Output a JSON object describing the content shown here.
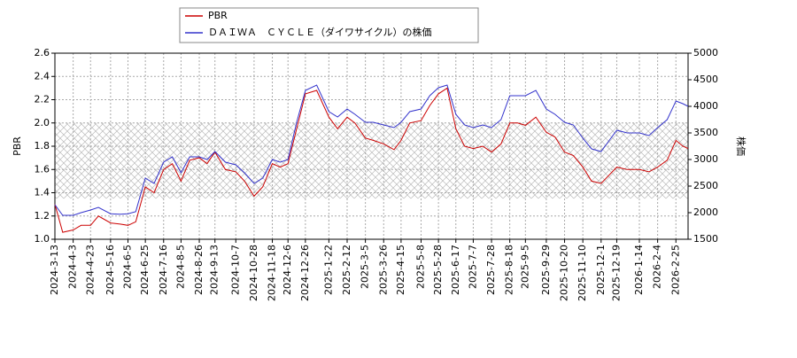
{
  "chart_data": {
    "type": "line",
    "legend": [
      "PBR",
      "ＤＡＩＷＡ　ＣＹＣＬＥ（ダイワサイクル）の株価"
    ],
    "ylabel": "PBR",
    "y2label": "株価",
    "x": [
      "2024-3-13",
      "2024-3-22",
      "2024-4-3",
      "2024-4-12",
      "2024-4-23",
      "2024-5-2",
      "2024-5-16",
      "2024-5-27",
      "2024-6-5",
      "2024-6-14",
      "2024-6-25",
      "2024-7-5",
      "2024-7-16",
      "2024-7-26",
      "2024-8-5",
      "2024-8-15",
      "2024-8-26",
      "2024-9-4",
      "2024-9-13",
      "2024-9-25",
      "2024-10-7",
      "2024-10-17",
      "2024-10-28",
      "2024-11-7",
      "2024-11-18",
      "2024-11-27",
      "2024-12-6",
      "2024-12-16",
      "2024-12-26",
      "2025-1-8",
      "2025-1-22",
      "2025-2-1",
      "2025-2-12",
      "2025-2-21",
      "2025-3-5",
      "2025-3-14",
      "2025-3-26",
      "2025-4-7",
      "2025-4-15",
      "2025-4-25",
      "2025-5-8",
      "2025-5-18",
      "2025-5-28",
      "2025-6-7",
      "2025-6-17",
      "2025-6-27",
      "2025-7-7",
      "2025-7-18",
      "2025-7-28",
      "2025-8-8",
      "2025-8-18",
      "2025-8-27",
      "2025-9-5",
      "2025-9-17",
      "2025-9-29",
      "2025-10-9",
      "2025-10-20",
      "2025-10-30",
      "2025-11-10",
      "2025-11-20",
      "2025-12-1",
      "2025-12-10",
      "2025-12-19",
      "2025-12-31",
      "2026-1-14",
      "2026-1-25",
      "2026-2-4",
      "2026-2-15",
      "2026-2-25",
      "2026-3-5",
      "2026-3-11"
    ],
    "series": [
      {
        "name": "PBR",
        "color": "#cc0000",
        "axis": "y",
        "values": [
          1.3,
          1.06,
          1.08,
          1.12,
          1.12,
          1.2,
          1.14,
          1.13,
          1.12,
          1.15,
          1.45,
          1.4,
          1.6,
          1.65,
          1.5,
          1.68,
          1.7,
          1.65,
          1.75,
          1.6,
          1.58,
          1.5,
          1.37,
          1.45,
          1.65,
          1.62,
          1.65,
          1.95,
          2.25,
          2.28,
          2.05,
          1.95,
          2.05,
          2.0,
          1.87,
          1.85,
          1.82,
          1.77,
          1.85,
          2.0,
          2.02,
          2.15,
          2.25,
          2.3,
          1.95,
          1.8,
          1.78,
          1.8,
          1.75,
          1.82,
          2.0,
          2.0,
          1.98,
          2.05,
          1.92,
          1.88,
          1.75,
          1.72,
          1.62,
          1.5,
          1.48,
          1.55,
          1.62,
          1.6,
          1.6,
          1.58,
          1.62,
          1.68,
          1.85,
          1.8,
          1.78
        ]
      },
      {
        "name": "ＤＡＩＷＡ　ＣＹＣＬＥ（ダイワサイクル）の株価",
        "color": "#3333cc",
        "axis": "y2",
        "values": [
          2150,
          1950,
          1950,
          2000,
          2050,
          2100,
          1980,
          1970,
          1980,
          2020,
          2650,
          2550,
          2950,
          3050,
          2750,
          3050,
          3050,
          3000,
          3150,
          2950,
          2900,
          2750,
          2550,
          2650,
          3000,
          2950,
          3000,
          3700,
          4300,
          4400,
          3900,
          3800,
          3950,
          3850,
          3700,
          3700,
          3650,
          3600,
          3700,
          3900,
          3950,
          4200,
          4350,
          4400,
          3850,
          3650,
          3600,
          3650,
          3600,
          3750,
          4200,
          4200,
          4200,
          4300,
          3950,
          3850,
          3700,
          3650,
          3400,
          3200,
          3150,
          3350,
          3550,
          3500,
          3500,
          3450,
          3600,
          3750,
          4100,
          4050,
          4000
        ]
      }
    ],
    "xlim": [
      "2024-3-13",
      "2026-3-11"
    ],
    "xticks": [
      "2024-3-13",
      "2024-4-3",
      "2024-4-23",
      "2024-5-16",
      "2024-6-5",
      "2024-6-25",
      "2024-7-16",
      "2024-8-5",
      "2024-8-26",
      "2024-9-13",
      "2024-10-7",
      "2024-10-28",
      "2024-11-18",
      "2024-12-6",
      "2024-12-26",
      "2025-1-22",
      "2025-2-12",
      "2025-3-5",
      "2025-3-26",
      "2025-4-15",
      "2025-5-8",
      "2025-5-28",
      "2025-6-17",
      "2025-7-7",
      "2025-7-28",
      "2025-8-18",
      "2025-9-5",
      "2025-9-29",
      "2025-10-20",
      "2025-11-10",
      "2025-12-1",
      "2025-12-19",
      "2026-1-14",
      "2026-2-4",
      "2026-2-25"
    ],
    "ylim": [
      1.0,
      2.6
    ],
    "yticks": [
      {
        "value": 1,
        "label": "1.0"
      },
      1.2,
      1.4,
      1.6,
      1.8,
      {
        "value": 2,
        "label": "2.0"
      },
      2.2,
      2.4,
      2.6
    ],
    "y2lim": [
      1500,
      5000
    ],
    "y2ticks": [
      1500,
      2000,
      2500,
      3000,
      3500,
      4000,
      4500,
      5000
    ],
    "shade_range": [
      1.35,
      2.0
    ],
    "grid": true
  }
}
